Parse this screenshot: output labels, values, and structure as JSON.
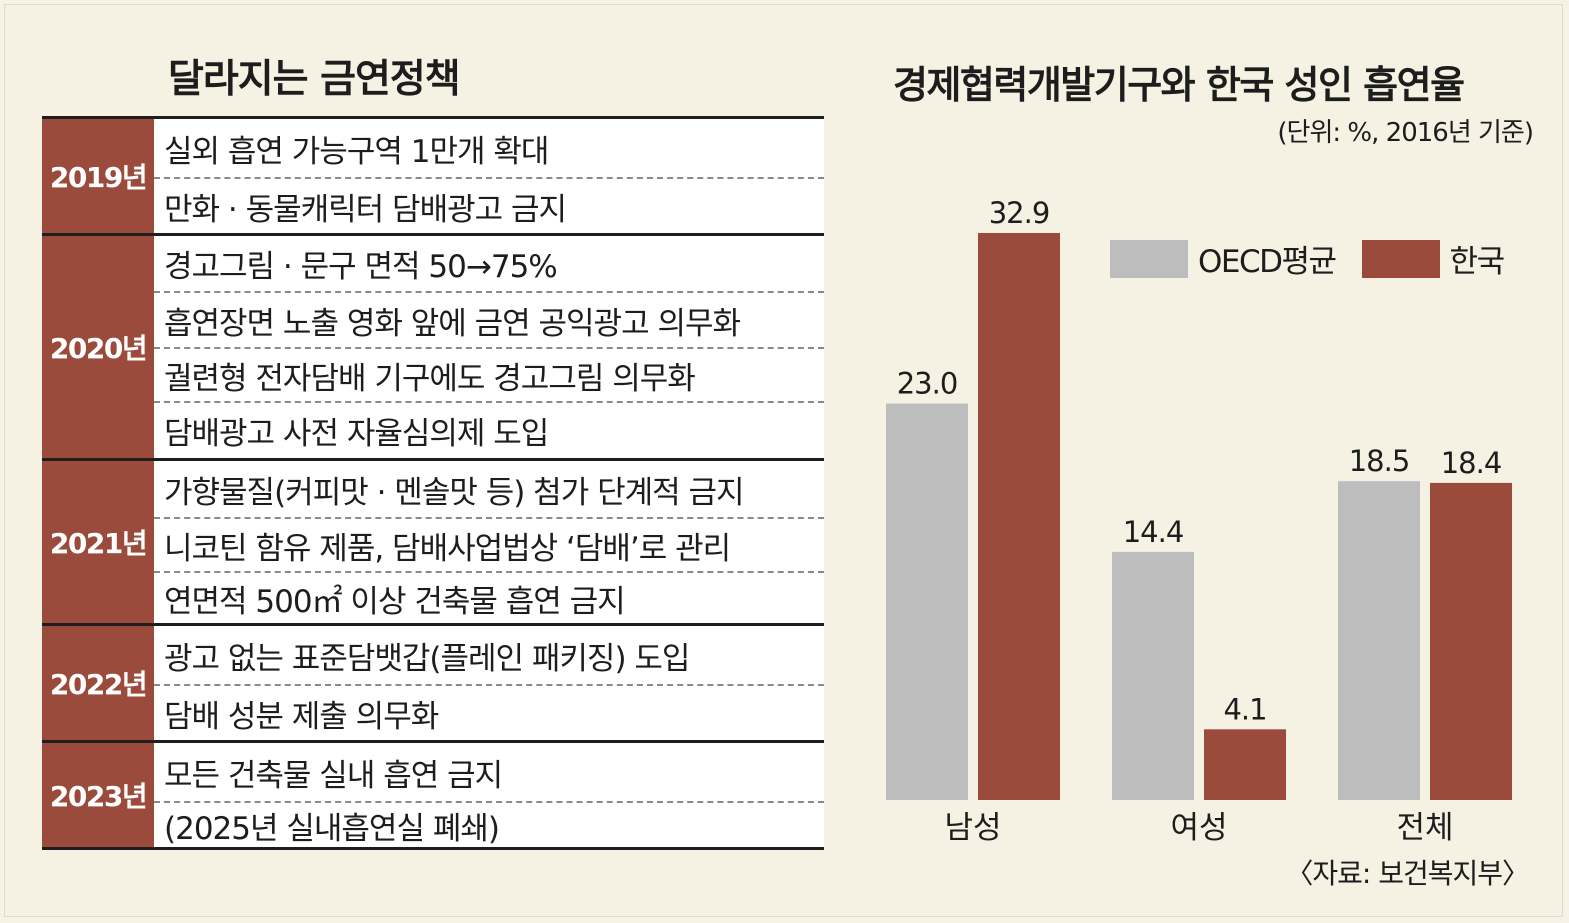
{
  "policy": {
    "title": "달라지는 금연정책",
    "groups": [
      {
        "year": "2019년",
        "items": [
          "실외 흡연 가능구역 1만개 확대",
          "만화 · 동물캐릭터 담배광고 금지"
        ]
      },
      {
        "year": "2020년",
        "items": [
          "경고그림 · 문구 면적 50→75%",
          "흡연장면 노출 영화 앞에 금연 공익광고 의무화",
          "궐련형 전자담배 기구에도 경고그림 의무화",
          "담배광고 사전 자율심의제 도입"
        ]
      },
      {
        "year": "2021년",
        "items": [
          "가향물질(커피맛 · 멘솔맛 등) 첨가 단계적 금지",
          "니코틴 함유 제품, 담배사업법상 ‘담배’로 관리",
          "연면적 500㎡ 이상 건축물 흡연 금지"
        ]
      },
      {
        "year": "2022년",
        "items": [
          "광고 없는 표준담뱃갑(플레인 패키징) 도입",
          "담배 성분 제출 의무화"
        ]
      },
      {
        "year": "2023년",
        "items": [
          "모든 건축물 실내 흡연 금지",
          "(2025년 실내흡연실 폐쇄)"
        ]
      }
    ]
  },
  "chart_data": {
    "type": "bar",
    "title": "경제협력개발기구와 한국 성인 흡연율",
    "unit_note": "(단위: %, 2016년 기준)",
    "categories": [
      "남성",
      "여성",
      "전체"
    ],
    "series": [
      {
        "name": "OECD평균",
        "color": "#bdbdbd",
        "values": [
          23.0,
          14.4,
          18.5
        ]
      },
      {
        "name": "한국",
        "color": "#9a4b3b",
        "values": [
          32.9,
          4.1,
          18.4
        ]
      }
    ],
    "value_labels": [
      [
        "23.0",
        "14.4",
        "18.5"
      ],
      [
        "32.9",
        "4.1",
        "18.4"
      ]
    ],
    "ylim": [
      0,
      35
    ],
    "legend_position": "top-right",
    "grid": false,
    "source": "〈자료: 보건복지부〉"
  }
}
